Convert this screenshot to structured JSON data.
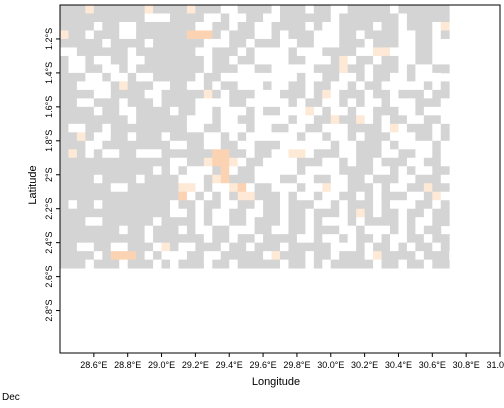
{
  "chart_data": {
    "type": "heatmap",
    "caption": "Dec",
    "xlabel": "Longitude",
    "ylabel": "Latitude",
    "xlim": [
      28.4,
      31.0
    ],
    "ylim": [
      -3.05,
      -1.0
    ],
    "x_ticks": [
      "28.6°E",
      "28.8°E",
      "29.0°E",
      "29.2°E",
      "29.4°E",
      "29.6°E",
      "29.8°E",
      "30.0°E",
      "30.2°E",
      "30.4°E",
      "30.6°E",
      "30.8°E",
      "31.0°E"
    ],
    "x_tick_values": [
      28.6,
      28.8,
      29.0,
      29.2,
      29.4,
      29.6,
      29.8,
      30.0,
      30.2,
      30.4,
      30.6,
      30.8,
      31.0
    ],
    "y_ticks": [
      "1.2°S",
      "1.4°S",
      "1.6°S",
      "1.8°S",
      "2°S",
      "2.2°S",
      "2.4°S",
      "2.6°S",
      "2.8°S"
    ],
    "y_tick_values": [
      -1.2,
      -1.4,
      -1.6,
      -1.8,
      -2.0,
      -2.2,
      -2.4,
      -2.6,
      -2.8
    ],
    "cell_size_deg": 0.05,
    "colors": {
      "land": "#d4d4d4",
      "missing": "#ffffff",
      "light": "#fde9d6",
      "medium": "#fbd3b3"
    },
    "grid_legend": "row strings from north to south; each char is one 0.05° cell from west to east: '.'=grey, ' '=white, 'o'=light orange, 'O'=medium orange",
    "grid": [
      "...o......o....o...  .... ... ..  ..... ......",
      "..........   ....  .  ..  ...... ....... .....",
      ".... ..  .......  .. ..  .... .  .... .. ... o",
      "o.. ...  ......OOO. ...  . ...   .. ....  .. .",
      "..... .... ......   .. ...  ..   ... ...  ..  ",
      "  ...... .......  ... .    .   ....  oo   ..  ",
      ".  .  ..  ....... .. ..    ..   .o .. ..  ..  ",
      ".  ..  . ........ ...  ..     ...o.. ... .  ..",
      "...  .  .  ..... ..         .  ..  . ..  .   ",
      "..    .o...  ..  . ..   .  .. ..  . ..     . .",
      "....  ....  .....o. ...   ... .o ... .. ... ..",
      "..  ... ... ....    ..     . ..  . .  .   ... ",
      ".... ..  .... ..  .   . ..   o .  .  ...  .   ",
      "........ ......   .  ..    .  ..o..o . ..  .. ",
      ".  .. .........  ..   .  ..  ..   .... o ... .",
      "..o.  .. ... ....  . .      .  .  . ...   .. .",
      "...  ........  ..  ..  ...      .  ... .    . ",
      ".o. .  ..   ......OO.. ..  oo ...  ...  ..  . ",
      ".............  ..oOOo ..    ...  . .. ...  .. ",
      "........... . .   .O ..     .    ....  . .  ..",
      ".... .... ....   .oO...   ..  ..  .. ...  ... ",
      "......  ......oo .  oO ..   .  o  ... .  ..o..",
      "..............O . . .oo... .  .  .. . ...  .o ",
      ". .. ........ .. ..  .. .. ...  . ... .   .. .",
      ".............  . .  ..  .. .. ... .o. .. .. ..",
      "...  ...... .... .  .. ... .. .   . .... .  ..",
      "....... .. ... .  ..   ..  .. ...  .   . . ..",
      ".......... ...... .. .. ....  .  . .. .  .. ..",
      "..  ..  ... o.  ... .. ... .....   . .. . .. .",
      ".... .OOO. .   ..  ..... o... .. ... o.... ... ",
      "... ... ... . ... .. ..... .. . ..... .. .. .."
    ]
  }
}
